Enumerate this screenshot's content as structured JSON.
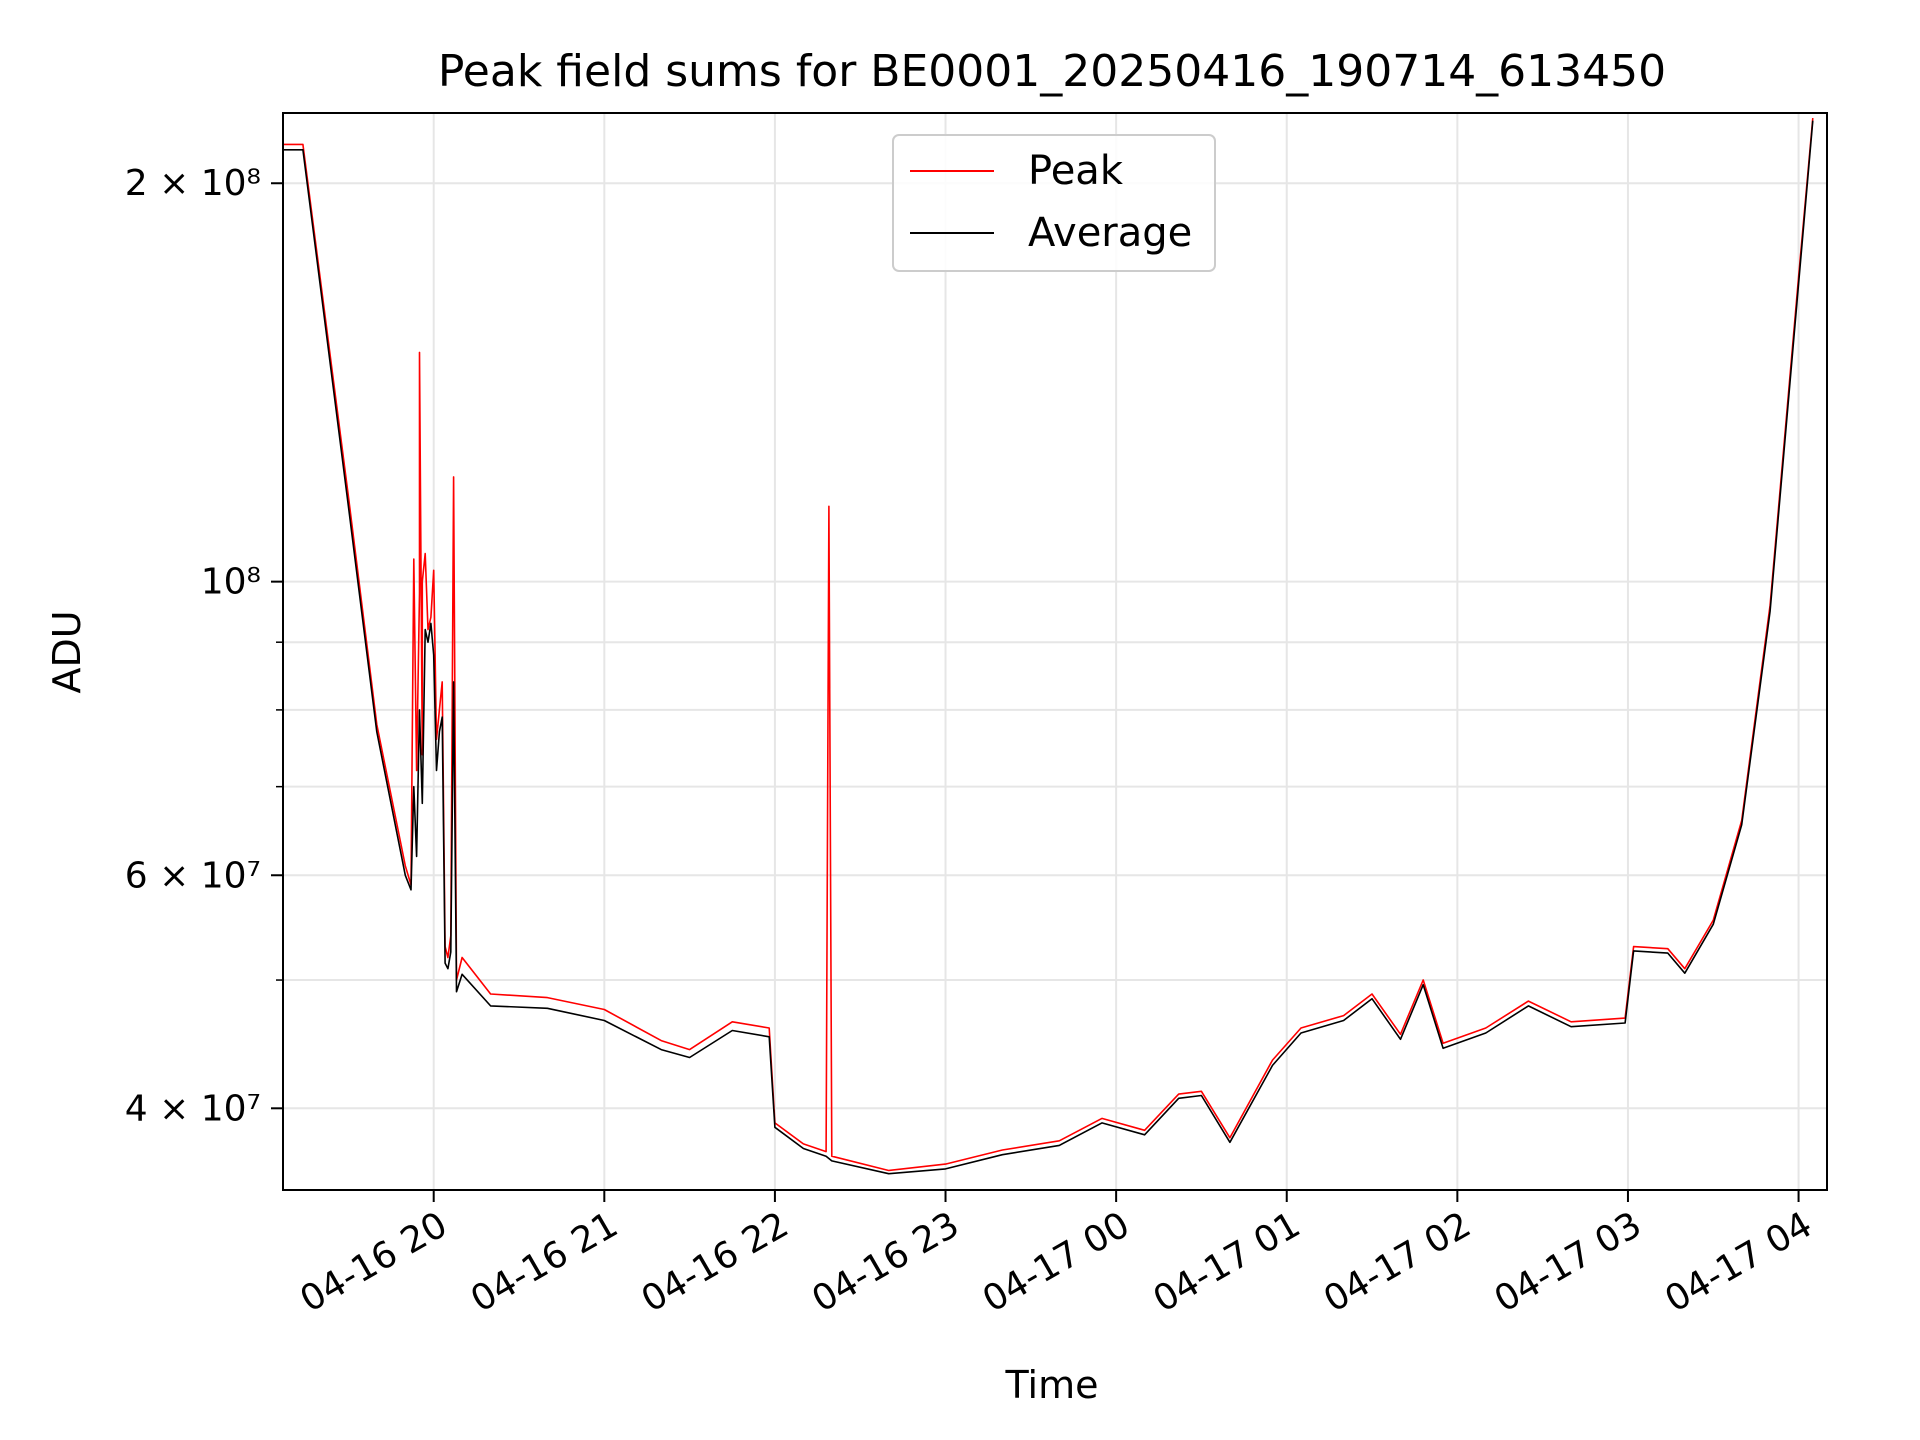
{
  "chart_data": {
    "type": "line",
    "title": "Peak field sums for BE0001_20250416_190714_613450",
    "xlabel": "Time",
    "ylabel": "ADU",
    "yscale": "log",
    "grid": true,
    "legend": {
      "placement": "top-center",
      "entries": [
        "Peak",
        "Average"
      ]
    },
    "colors": {
      "Peak": "#ff0000",
      "Average": "#000000"
    },
    "xlim": [
      "2025-04-16 19:07",
      "2025-04-17 04:10"
    ],
    "ylim": [
      34700000,
      226000000
    ],
    "x_ticks": [
      {
        "label": "04-16 20",
        "value": "2025-04-16 20:00"
      },
      {
        "label": "04-16 21",
        "value": "2025-04-16 21:00"
      },
      {
        "label": "04-16 22",
        "value": "2025-04-16 22:00"
      },
      {
        "label": "04-16 23",
        "value": "2025-04-16 23:00"
      },
      {
        "label": "04-17 00",
        "value": "2025-04-17 00:00"
      },
      {
        "label": "04-17 01",
        "value": "2025-04-17 01:00"
      },
      {
        "label": "04-17 02",
        "value": "2025-04-17 02:00"
      },
      {
        "label": "04-17 03",
        "value": "2025-04-17 03:00"
      },
      {
        "label": "04-17 04",
        "value": "2025-04-17 04:00"
      }
    ],
    "y_ticks_major": [
      {
        "label": "4 × 10⁷",
        "value": 40000000
      },
      {
        "label": "6 × 10⁷",
        "value": 60000000
      },
      {
        "label": "10⁸",
        "value": 100000000
      },
      {
        "label": "2 × 10⁸",
        "value": 200000000
      }
    ],
    "y_ticks_minor": [
      50000000,
      70000000,
      80000000,
      90000000
    ],
    "series": [
      {
        "name": "Peak",
        "points": [
          [
            "2025-04-16 19:07",
            214000000
          ],
          [
            "2025-04-16 19:14",
            214000000
          ],
          [
            "2025-04-16 19:20",
            170000000
          ],
          [
            "2025-04-16 19:30",
            116000000
          ],
          [
            "2025-04-16 19:40",
            78000000
          ],
          [
            "2025-04-16 19:50",
            61000000
          ],
          [
            "2025-04-16 19:52",
            59000000
          ],
          [
            "2025-04-16 19:53",
            104000000
          ],
          [
            "2025-04-16 19:54",
            72000000
          ],
          [
            "2025-04-16 19:55",
            98000000
          ],
          [
            "2025-04-16 19:55",
            149000000
          ],
          [
            "2025-04-16 19:56",
            74000000
          ],
          [
            "2025-04-16 19:56",
            100000000
          ],
          [
            "2025-04-16 19:57",
            105000000
          ],
          [
            "2025-04-16 19:58",
            92000000
          ],
          [
            "2025-04-16 19:59",
            94000000
          ],
          [
            "2025-04-16 20:00",
            102000000
          ],
          [
            "2025-04-16 20:01",
            76000000
          ],
          [
            "2025-04-16 20:02",
            80000000
          ],
          [
            "2025-04-16 20:03",
            84000000
          ],
          [
            "2025-04-16 20:04",
            53000000
          ],
          [
            "2025-04-16 20:05",
            52000000
          ],
          [
            "2025-04-16 20:06",
            54000000
          ],
          [
            "2025-04-16 20:07",
            120000000
          ],
          [
            "2025-04-16 20:08",
            50000000
          ],
          [
            "2025-04-16 20:10",
            52000000
          ],
          [
            "2025-04-16 20:20",
            48800000
          ],
          [
            "2025-04-16 20:40",
            48500000
          ],
          [
            "2025-04-16 21:00",
            47500000
          ],
          [
            "2025-04-16 21:20",
            45000000
          ],
          [
            "2025-04-16 21:30",
            44300000
          ],
          [
            "2025-04-16 21:45",
            46500000
          ],
          [
            "2025-04-16 21:58",
            46000000
          ],
          [
            "2025-04-16 22:00",
            39000000
          ],
          [
            "2025-04-16 22:10",
            37600000
          ],
          [
            "2025-04-16 22:18",
            37100000
          ],
          [
            "2025-04-16 22:19",
            114000000
          ],
          [
            "2025-04-16 22:20",
            36800000
          ],
          [
            "2025-04-16 22:40",
            35900000
          ],
          [
            "2025-04-16 23:00",
            36300000
          ],
          [
            "2025-04-16 23:20",
            37200000
          ],
          [
            "2025-04-16 23:40",
            37800000
          ],
          [
            "2025-04-16 23:55",
            39300000
          ],
          [
            "2025-04-17 00:10",
            38500000
          ],
          [
            "2025-04-17 00:22",
            41000000
          ],
          [
            "2025-04-17 00:30",
            41200000
          ],
          [
            "2025-04-17 00:40",
            38000000
          ],
          [
            "2025-04-17 00:55",
            43500000
          ],
          [
            "2025-04-17 01:05",
            46000000
          ],
          [
            "2025-04-17 01:20",
            47000000
          ],
          [
            "2025-04-17 01:30",
            48800000
          ],
          [
            "2025-04-17 01:40",
            45500000
          ],
          [
            "2025-04-17 01:48",
            50000000
          ],
          [
            "2025-04-17 01:55",
            44800000
          ],
          [
            "2025-04-17 02:10",
            46000000
          ],
          [
            "2025-04-17 02:25",
            48200000
          ],
          [
            "2025-04-17 02:40",
            46500000
          ],
          [
            "2025-04-17 02:59",
            46800000
          ],
          [
            "2025-04-17 03:02",
            53000000
          ],
          [
            "2025-04-17 03:14",
            52800000
          ],
          [
            "2025-04-17 03:20",
            51000000
          ],
          [
            "2025-04-17 03:30",
            55500000
          ],
          [
            "2025-04-17 03:40",
            66000000
          ],
          [
            "2025-04-17 03:50",
            96000000
          ],
          [
            "2025-04-17 04:00",
            170000000
          ],
          [
            "2025-04-17 04:05",
            224000000
          ]
        ]
      },
      {
        "name": "Average",
        "points": [
          [
            "2025-04-16 19:07",
            212000000
          ],
          [
            "2025-04-16 19:14",
            212000000
          ],
          [
            "2025-04-16 19:20",
            168000000
          ],
          [
            "2025-04-16 19:30",
            114000000
          ],
          [
            "2025-04-16 19:40",
            77000000
          ],
          [
            "2025-04-16 19:50",
            60000000
          ],
          [
            "2025-04-16 19:52",
            58500000
          ],
          [
            "2025-04-16 19:53",
            70000000
          ],
          [
            "2025-04-16 19:54",
            62000000
          ],
          [
            "2025-04-16 19:55",
            80000000
          ],
          [
            "2025-04-16 19:56",
            68000000
          ],
          [
            "2025-04-16 19:57",
            92000000
          ],
          [
            "2025-04-16 19:58",
            90000000
          ],
          [
            "2025-04-16 19:59",
            93000000
          ],
          [
            "2025-04-16 20:00",
            88000000
          ],
          [
            "2025-04-16 20:01",
            72000000
          ],
          [
            "2025-04-16 20:02",
            77000000
          ],
          [
            "2025-04-16 20:03",
            79000000
          ],
          [
            "2025-04-16 20:04",
            51500000
          ],
          [
            "2025-04-16 20:05",
            51000000
          ],
          [
            "2025-04-16 20:06",
            52500000
          ],
          [
            "2025-04-16 20:07",
            84000000
          ],
          [
            "2025-04-16 20:08",
            49000000
          ],
          [
            "2025-04-16 20:10",
            50500000
          ],
          [
            "2025-04-16 20:20",
            47800000
          ],
          [
            "2025-04-16 20:40",
            47600000
          ],
          [
            "2025-04-16 21:00",
            46600000
          ],
          [
            "2025-04-16 21:20",
            44300000
          ],
          [
            "2025-04-16 21:30",
            43700000
          ],
          [
            "2025-04-16 21:45",
            45800000
          ],
          [
            "2025-04-16 21:58",
            45300000
          ],
          [
            "2025-04-16 22:00",
            38700000
          ],
          [
            "2025-04-16 22:10",
            37300000
          ],
          [
            "2025-04-16 22:18",
            36800000
          ],
          [
            "2025-04-16 22:20",
            36500000
          ],
          [
            "2025-04-16 22:40",
            35700000
          ],
          [
            "2025-04-16 23:00",
            36000000
          ],
          [
            "2025-04-16 23:20",
            36900000
          ],
          [
            "2025-04-16 23:40",
            37500000
          ],
          [
            "2025-04-16 23:55",
            39000000
          ],
          [
            "2025-04-17 00:10",
            38200000
          ],
          [
            "2025-04-17 00:22",
            40700000
          ],
          [
            "2025-04-17 00:30",
            40900000
          ],
          [
            "2025-04-17 00:40",
            37700000
          ],
          [
            "2025-04-17 00:55",
            43100000
          ],
          [
            "2025-04-17 01:05",
            45600000
          ],
          [
            "2025-04-17 01:20",
            46600000
          ],
          [
            "2025-04-17 01:30",
            48400000
          ],
          [
            "2025-04-17 01:40",
            45100000
          ],
          [
            "2025-04-17 01:48",
            49600000
          ],
          [
            "2025-04-17 01:55",
            44400000
          ],
          [
            "2025-04-17 02:10",
            45600000
          ],
          [
            "2025-04-17 02:25",
            47800000
          ],
          [
            "2025-04-17 02:40",
            46100000
          ],
          [
            "2025-04-17 02:59",
            46400000
          ],
          [
            "2025-04-17 03:02",
            52600000
          ],
          [
            "2025-04-17 03:14",
            52400000
          ],
          [
            "2025-04-17 03:20",
            50600000
          ],
          [
            "2025-04-17 03:30",
            55100000
          ],
          [
            "2025-04-17 03:40",
            65500000
          ],
          [
            "2025-04-17 03:50",
            95000000
          ],
          [
            "2025-04-17 04:00",
            168000000
          ],
          [
            "2025-04-17 04:05",
            223000000
          ]
        ]
      }
    ]
  }
}
